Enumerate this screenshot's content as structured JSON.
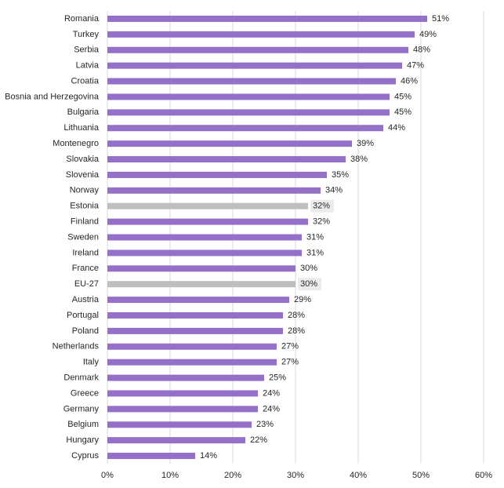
{
  "chart_data": {
    "type": "bar",
    "orientation": "horizontal",
    "categories": [
      "Romania",
      "Turkey",
      "Serbia",
      "Latvia",
      "Croatia",
      "Bosnia and Herzegovina",
      "Bulgaria",
      "Lithuania",
      "Montenegro",
      "Slovakia",
      "Slovenia",
      "Norway",
      "Estonia",
      "Finland",
      "Sweden",
      "Ireland",
      "France",
      "EU-27",
      "Austria",
      "Portugal",
      "Poland",
      "Netherlands",
      "Italy",
      "Denmark",
      "Greece",
      "Germany",
      "Belgium",
      "Hungary",
      "Cyprus"
    ],
    "values": [
      51,
      49,
      48,
      47,
      46,
      45,
      45,
      44,
      39,
      38,
      35,
      34,
      32,
      32,
      31,
      31,
      30,
      30,
      29,
      28,
      28,
      27,
      27,
      25,
      24,
      24,
      23,
      22,
      14
    ],
    "value_labels": [
      "51%",
      "49%",
      "48%",
      "47%",
      "46%",
      "45%",
      "45%",
      "44%",
      "39%",
      "38%",
      "35%",
      "34%",
      "32%",
      "32%",
      "31%",
      "31%",
      "30%",
      "30%",
      "29%",
      "28%",
      "28%",
      "27%",
      "27%",
      "25%",
      "24%",
      "24%",
      "23%",
      "22%",
      "14%"
    ],
    "color": "#9470c8",
    "colors": [
      "#9470c8",
      "#9470c8",
      "#9470c8",
      "#9470c8",
      "#9470c8",
      "#9470c8",
      "#9470c8",
      "#9470c8",
      "#9470c8",
      "#9470c8",
      "#9470c8",
      "#9470c8",
      "#bfbfbf",
      "#9470c8",
      "#9470c8",
      "#9470c8",
      "#9470c8",
      "#bfbfbf",
      "#9470c8",
      "#9470c8",
      "#9470c8",
      "#9470c8",
      "#9470c8",
      "#9470c8",
      "#9470c8",
      "#9470c8",
      "#9470c8",
      "#9470c8",
      "#9470c8"
    ],
    "xlim": [
      0,
      60
    ],
    "xticks": [
      {
        "value": 0,
        "label": "0%"
      },
      {
        "value": 10,
        "label": "10%"
      },
      {
        "value": 20,
        "label": "20%"
      },
      {
        "value": 30,
        "label": "30%"
      },
      {
        "value": 40,
        "label": "40%"
      },
      {
        "value": 50,
        "label": "50%"
      },
      {
        "value": 60,
        "label": "60%"
      }
    ],
    "grid": true
  }
}
